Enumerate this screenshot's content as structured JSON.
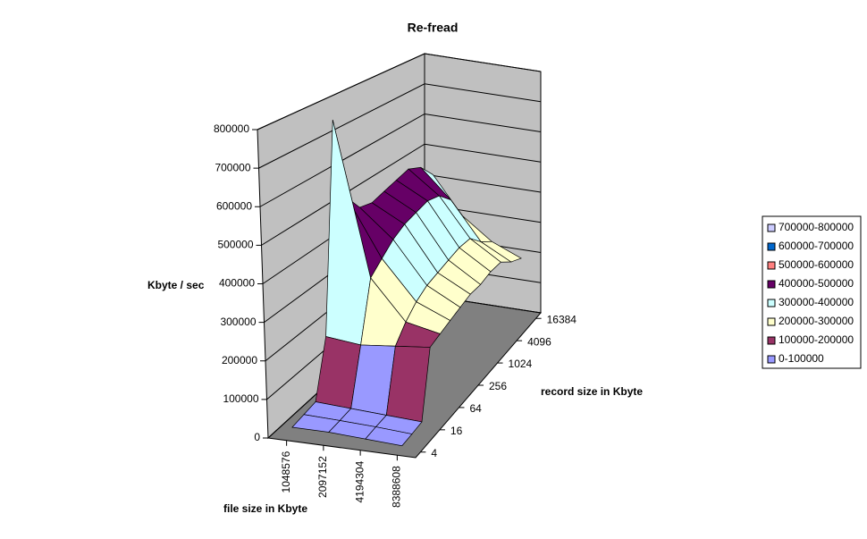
{
  "chart_data": {
    "type": "surface",
    "title": "Re-fread",
    "x_label": "file size in Kbyte",
    "y_label": "Kbyte / sec",
    "z_label": "record size in Kbyte",
    "x": [
      1048576,
      2097152,
      4194304,
      8388608
    ],
    "z": [
      4,
      null,
      16,
      null,
      64,
      null,
      256,
      null,
      1024,
      null,
      4096,
      null,
      16384
    ],
    "values": [
      [
        20000,
        20000,
        15000,
        10000
      ],
      [
        25000,
        22000,
        18000,
        12000
      ],
      [
        30000,
        25000,
        20000,
        15000
      ],
      [
        180000,
        170000,
        180000,
        190000
      ],
      [
        760000,
        330000,
        220000,
        200000
      ],
      [
        520000,
        360000,
        250000,
        210000
      ],
      [
        470000,
        390000,
        270000,
        220000
      ],
      [
        460000,
        410000,
        280000,
        230000
      ],
      [
        470000,
        420000,
        290000,
        230000
      ],
      [
        480000,
        430000,
        300000,
        240000
      ],
      [
        490000,
        420000,
        300000,
        240000
      ],
      [
        470000,
        380000,
        260000,
        210000
      ],
      [
        420000,
        300000,
        230000,
        190000
      ]
    ],
    "ylim": [
      0,
      800000
    ],
    "yticks": [
      0,
      100000,
      200000,
      300000,
      400000,
      500000,
      600000,
      700000,
      800000
    ],
    "legend_position": "right",
    "bands": [
      {
        "label": "700000-800000",
        "color": "#ccccff"
      },
      {
        "label": "600000-700000",
        "color": "#0066cc"
      },
      {
        "label": "500000-600000",
        "color": "#ff8080"
      },
      {
        "label": "400000-500000",
        "color": "#660066"
      },
      {
        "label": "300000-400000",
        "color": "#ccffff"
      },
      {
        "label": "200000-300000",
        "color": "#ffffcc"
      },
      {
        "label": "100000-200000",
        "color": "#993366"
      },
      {
        "label": "0-100000",
        "color": "#9999ff"
      }
    ]
  }
}
